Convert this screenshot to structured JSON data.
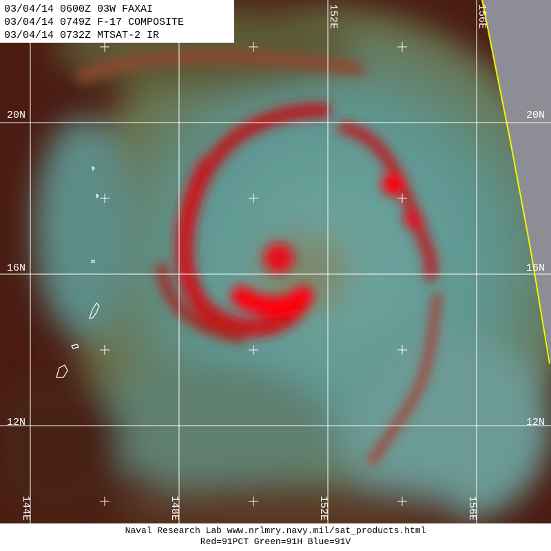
{
  "header": {
    "lines": [
      "03/04/14 0600Z 03W FAXAI",
      "03/04/14 0749Z F-17 COMPOSITE",
      "03/04/14 0732Z MTSAT-2 IR"
    ]
  },
  "map": {
    "lat_labels": [
      "20N",
      "16N",
      "12N"
    ],
    "lon_labels_top": [
      "152E",
      "156E"
    ],
    "lon_labels_bottom": [
      "144E",
      "148E",
      "152E",
      "156E"
    ]
  },
  "footer": {
    "lines": [
      "Naval Research Lab  www.nrlmry.navy.mil/sat_products.html",
      "Red=91PCT  Green=91H  Blue=91V"
    ]
  }
}
